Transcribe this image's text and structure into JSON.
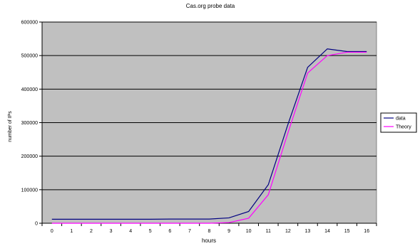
{
  "chart_data": {
    "type": "line",
    "title": "Cas.org probe data",
    "xlabel": "hours",
    "ylabel": "number of IPs",
    "x": [
      0,
      1,
      2,
      3,
      4,
      5,
      6,
      7,
      8,
      9,
      10,
      11,
      12,
      13,
      14,
      15,
      16
    ],
    "ylim": [
      0,
      600000
    ],
    "yticks": [
      0,
      100000,
      200000,
      300000,
      400000,
      500000,
      600000
    ],
    "grid": "horizontal",
    "legend_position": "right",
    "plot_background": "#c0c0c0",
    "series": [
      {
        "name": "data",
        "color": "#000080",
        "values": [
          12000,
          12000,
          12000,
          12000,
          12000,
          12000,
          12500,
          12500,
          12500,
          16000,
          35000,
          115000,
          295000,
          465000,
          520000,
          512000,
          512000
        ]
      },
      {
        "name": "Theory",
        "color": "#ff00ff",
        "values": [
          0,
          0,
          0,
          0,
          0,
          0,
          0,
          0,
          0,
          2000,
          15000,
          85000,
          270000,
          448000,
          500000,
          510000,
          510000
        ]
      }
    ]
  }
}
